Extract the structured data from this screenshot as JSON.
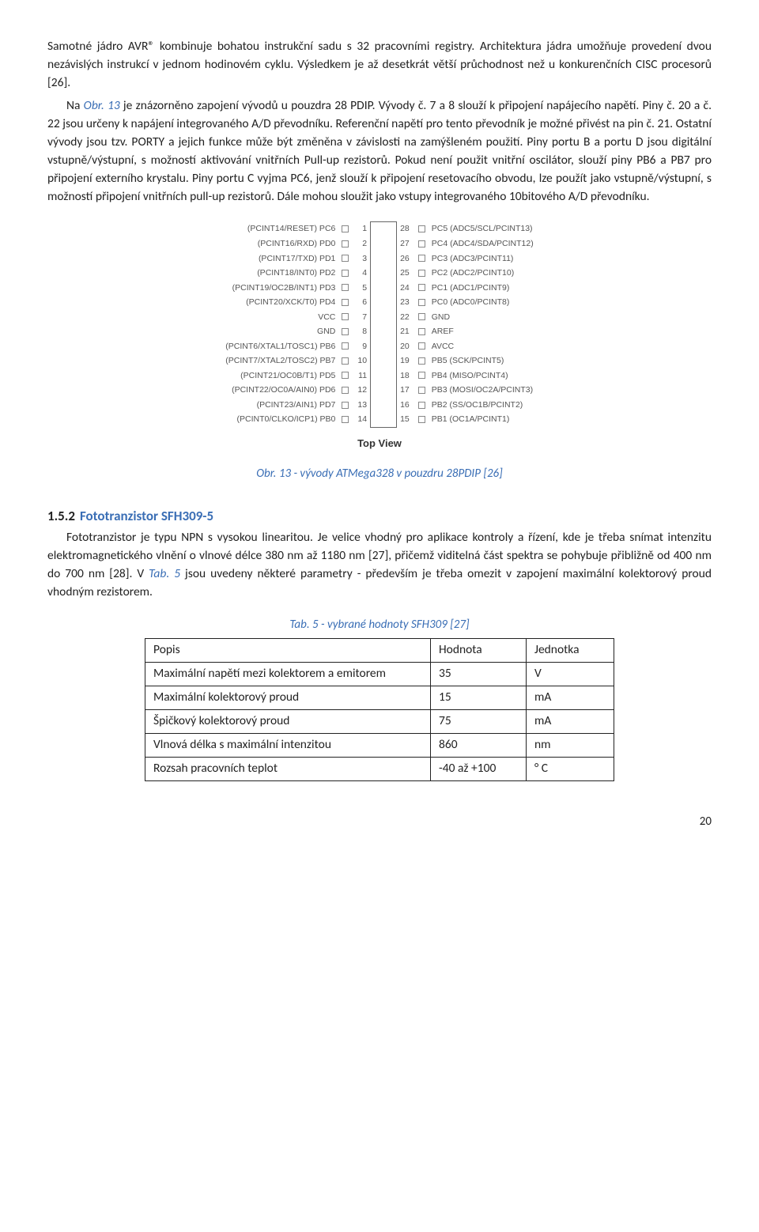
{
  "para1": "Samotné jádro AVR® kombinuje bohatou instrukční sadu s 32 pracovními registry. Architektura jádra umožňuje provedení dvou nezávislých instrukcí v jednom hodinovém cyklu. Výsledkem je až desetkrát větší průchodnost než u konkurenčních CISC procesorů [26].",
  "para2a": "Na ",
  "para2_ref": "Obr. 13",
  "para2b": " je znázorněno zapojení vývodů u pouzdra 28 PDIP. Vývody č. 7 a 8 slouží k připojení napájecího napětí. Piny č. 20 a č. 22 jsou určeny k napájení integrovaného A/D převodníku. Referenční napětí pro tento převodník je možné přivést na pin č. 21. Ostatní vývody jsou tzv. PORTY a jejich funkce může být změněna v závislosti na zamýšleném použití. Piny portu B a portu D jsou digitální vstupně/výstupní, s možností aktivování vnitřních Pull-up rezistorů. Pokud není použit vnitřní oscilátor, slouží piny PB6 a PB7 pro připojení externího krystalu. Piny portu C vyjma PC6, jenž slouží k připojení resetovacího obvodu, lze použít jako vstupně/výstupní, s možností připojení vnitřních pull-up rezistorů. Dále mohou sloužit jako vstupy integrovaného 10bitového A/D převodníku.",
  "pinout": {
    "left": [
      {
        "label": "(PCINT14/RESET) PC6",
        "pin": "1"
      },
      {
        "label": "(PCINT16/RXD) PD0",
        "pin": "2"
      },
      {
        "label": "(PCINT17/TXD) PD1",
        "pin": "3"
      },
      {
        "label": "(PCINT18/INT0) PD2",
        "pin": "4"
      },
      {
        "label": "(PCINT19/OC2B/INT1) PD3",
        "pin": "5"
      },
      {
        "label": "(PCINT20/XCK/T0) PD4",
        "pin": "6"
      },
      {
        "label": "VCC",
        "pin": "7"
      },
      {
        "label": "GND",
        "pin": "8"
      },
      {
        "label": "(PCINT6/XTAL1/TOSC1) PB6",
        "pin": "9"
      },
      {
        "label": "(PCINT7/XTAL2/TOSC2) PB7",
        "pin": "10"
      },
      {
        "label": "(PCINT21/OC0B/T1) PD5",
        "pin": "11"
      },
      {
        "label": "(PCINT22/OC0A/AIN0) PD6",
        "pin": "12"
      },
      {
        "label": "(PCINT23/AIN1) PD7",
        "pin": "13"
      },
      {
        "label": "(PCINT0/CLKO/ICP1) PB0",
        "pin": "14"
      }
    ],
    "right": [
      {
        "pin": "28",
        "label": "PC5 (ADC5/SCL/PCINT13)"
      },
      {
        "pin": "27",
        "label": "PC4 (ADC4/SDA/PCINT12)"
      },
      {
        "pin": "26",
        "label": "PC3 (ADC3/PCINT11)"
      },
      {
        "pin": "25",
        "label": "PC2 (ADC2/PCINT10)"
      },
      {
        "pin": "24",
        "label": "PC1 (ADC1/PCINT9)"
      },
      {
        "pin": "23",
        "label": "PC0 (ADC0/PCINT8)"
      },
      {
        "pin": "22",
        "label": "GND"
      },
      {
        "pin": "21",
        "label": "AREF"
      },
      {
        "pin": "20",
        "label": "AVCC"
      },
      {
        "pin": "19",
        "label": "PB5 (SCK/PCINT5)"
      },
      {
        "pin": "18",
        "label": "PB4 (MISO/PCINT4)"
      },
      {
        "pin": "17",
        "label": "PB3 (MOSI/OC2A/PCINT3)"
      },
      {
        "pin": "16",
        "label": "PB2 (SS/OC1B/PCINT2)"
      },
      {
        "pin": "15",
        "label": "PB1 (OC1A/PCINT1)"
      }
    ],
    "topview": "Top View"
  },
  "caption1": "Obr. 13 - vývody ATMega328 v pouzdru 28PDIP [26]",
  "heading": {
    "num": "1.5.2",
    "text": "Fototranzistor SFH309-5"
  },
  "para3a": "Fototranzistor je typu NPN s vysokou linearitou. Je velice vhodný pro aplikace kontroly a řízení, kde je třeba snímat intenzitu elektromagnetického vlnění o vlnové délce 380 nm až 1180 nm [27], přičemž viditelná část spektra se pohybuje přibližně od 400 nm do 700 nm [28]. V ",
  "para3_ref": "Tab. 5",
  "para3b": " jsou uvedeny některé parametry - především je třeba omezit v zapojení maximální kolektorový proud vhodným rezistorem.",
  "tabcaption": "Tab. 5 - vybrané hodnoty SFH309 [27]",
  "table": {
    "headers": [
      "Popis",
      "Hodnota",
      "Jednotka"
    ],
    "rows": [
      [
        "Maximální napětí mezi kolektorem a emitorem",
        "35",
        "V"
      ],
      [
        "Maximální kolektorový proud",
        "15",
        "mA"
      ],
      [
        "Špičkový kolektorový proud",
        "75",
        "mA"
      ],
      [
        "Vlnová délka s maximální intenzitou",
        "860",
        "nm"
      ],
      [
        "Rozsah pracovních teplot",
        "-40 až +100",
        "° C"
      ]
    ]
  },
  "pagenum": "20"
}
